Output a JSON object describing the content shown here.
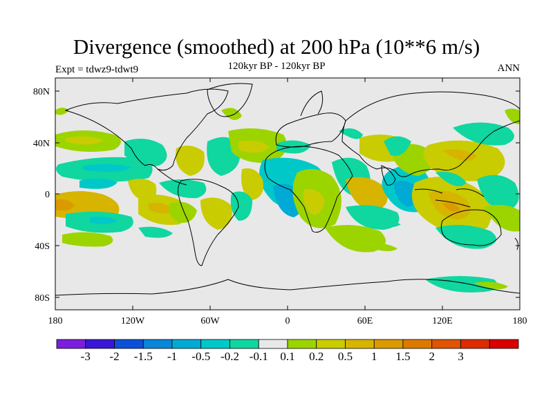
{
  "header": {
    "title": "Divergence (smoothed) at 200 hPa (10**6 m/s)",
    "subtitle": "120kyr BP - 120kyr BP",
    "left_string": "Expt = tdwz9-tdwt9",
    "right_string": "ANN"
  },
  "axes": {
    "lat_ticks": [
      "80N",
      "40N",
      "0",
      "40S",
      "80S"
    ],
    "lon_ticks": [
      "180",
      "120W",
      "60W",
      "0",
      "60E",
      "120E",
      "180"
    ]
  },
  "colorbar": {
    "colors": [
      "#7b1fdc",
      "#3a16d6",
      "#0d50d8",
      "#0a86d8",
      "#00aad4",
      "#00c8c8",
      "#10d6a0",
      "#e8e8e8",
      "#9cd400",
      "#c8cc00",
      "#d6b400",
      "#da9a00",
      "#dc7a00",
      "#de5400",
      "#dc2c00",
      "#d80000"
    ],
    "labels": [
      "-3",
      "-2",
      "-1.5",
      "-1",
      "-0.5",
      "-0.2",
      "-0.1",
      "0.1",
      "0.2",
      "0.5",
      "1",
      "1.5",
      "2",
      "3"
    ]
  },
  "chart_data": {
    "type": "heatmap",
    "title": "Divergence (smoothed) at 200 hPa (10**6 m/s)",
    "subtitle": "120kyr BP - 120kyr BP",
    "experiment": "Expt = tdwz9-tdwt9",
    "period": "ANN",
    "x_range": [
      "180",
      "180"
    ],
    "y_range": [
      "80S",
      "80N"
    ],
    "levels": [
      -3,
      -2,
      -1.5,
      -1,
      -0.5,
      -0.2,
      -0.1,
      0.1,
      0.2,
      0.5,
      1,
      1.5,
      2,
      3
    ],
    "anomaly_regions": [
      {
        "lon": -172,
        "lat": -8,
        "sign": "positive",
        "level": "1"
      },
      {
        "lon": -110,
        "lat": -8,
        "sign": "positive",
        "level": "0.5"
      },
      {
        "lon": -125,
        "lat": 14,
        "sign": "negative",
        "level": "-0.5"
      },
      {
        "lon": -40,
        "lat": 30,
        "sign": "positive",
        "level": "0.5"
      },
      {
        "lon": -10,
        "lat": -5,
        "sign": "negative",
        "level": "-1"
      },
      {
        "lon": 5,
        "lat": 10,
        "sign": "negative",
        "level": "-0.5"
      },
      {
        "lon": 35,
        "lat": -4,
        "sign": "positive",
        "level": "0.5"
      },
      {
        "lon": 80,
        "lat": 15,
        "sign": "positive",
        "level": "0.5"
      },
      {
        "lon": 80,
        "lat": -3,
        "sign": "negative",
        "level": "-1"
      },
      {
        "lon": 110,
        "lat": -5,
        "sign": "positive",
        "level": "1"
      },
      {
        "lon": 145,
        "lat": 18,
        "sign": "positive",
        "level": "0.5"
      },
      {
        "lon": 150,
        "lat": -22,
        "sign": "negative",
        "level": "-0.2"
      }
    ]
  }
}
